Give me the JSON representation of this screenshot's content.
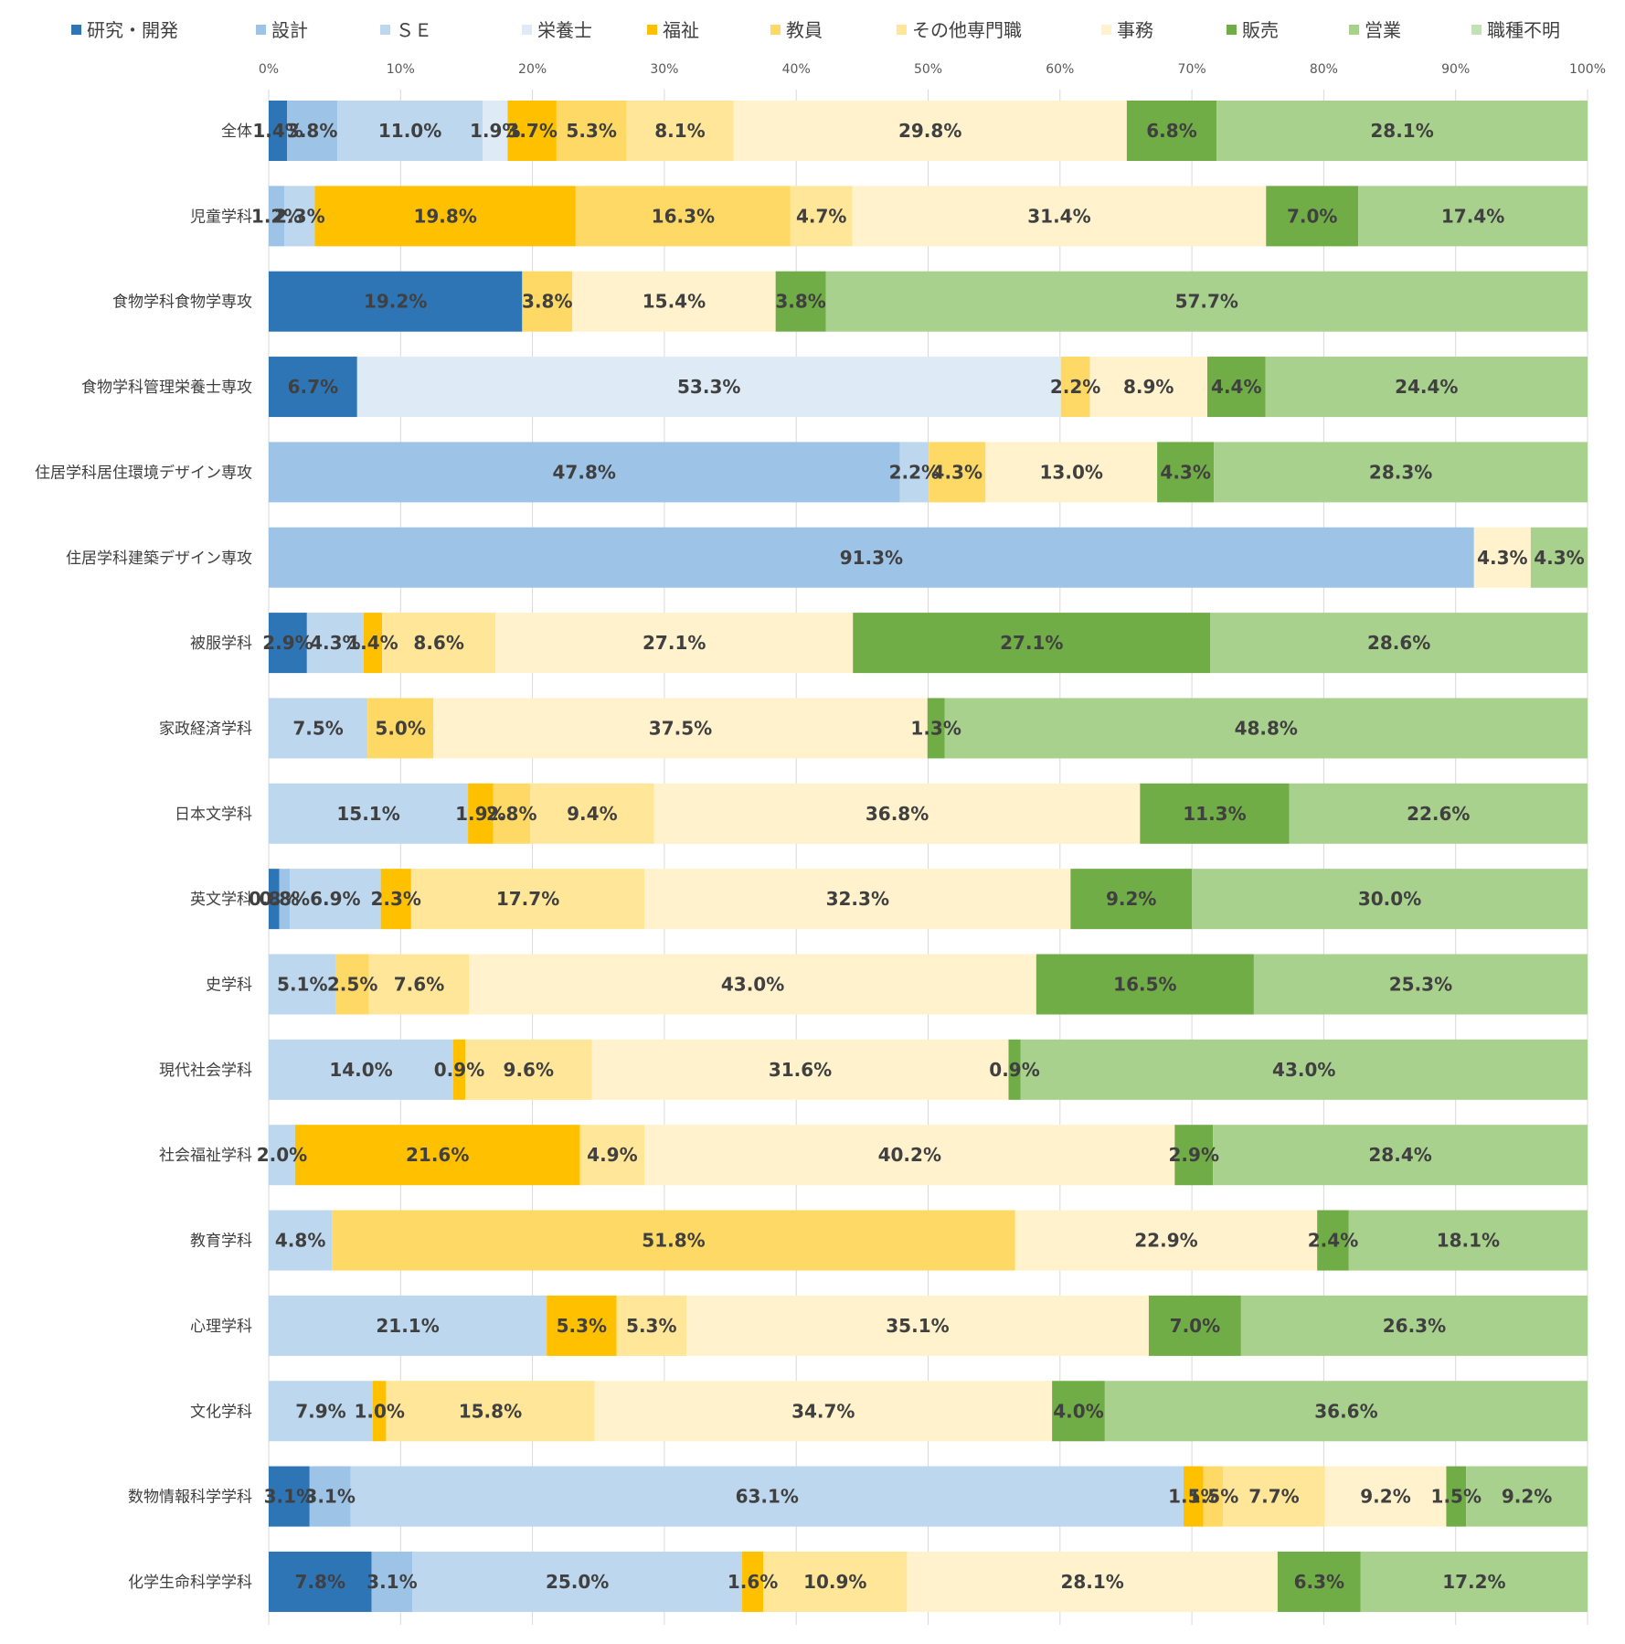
{
  "chart_data": {
    "type": "bar",
    "orientation": "horizontal",
    "stacked": "percent",
    "legend_position": "top",
    "grid": true,
    "xlim": [
      0,
      100
    ],
    "x_ticks": [
      "0%",
      "10%",
      "20%",
      "30%",
      "40%",
      "50%",
      "60%",
      "70%",
      "80%",
      "90%",
      "100%"
    ],
    "categories": [
      "全体",
      "児童学科",
      "食物学科食物学専攻",
      "食物学科管理栄養士専攻",
      "住居学科居住環境デザイン専攻",
      "住居学科建築デザイン専攻",
      "被服学科",
      "家政経済学科",
      "日本文学科",
      "英文学科",
      "史学科",
      "現代社会学科",
      "社会福祉学科",
      "教育学科",
      "心理学科",
      "文化学科",
      "数物情報科学学科",
      "化学生命科学学科"
    ],
    "series": [
      {
        "name": "研究・開発",
        "color": "#2e75b6",
        "values": [
          1.4,
          0,
          19.2,
          6.7,
          0,
          0,
          2.9,
          0,
          0,
          0.8,
          0,
          0,
          0,
          0,
          0,
          0,
          3.1,
          7.8
        ]
      },
      {
        "name": "設計",
        "color": "#9dc3e6",
        "values": [
          3.8,
          1.2,
          0,
          0,
          47.8,
          91.3,
          0,
          0,
          0,
          0.8,
          0,
          0,
          0,
          0,
          0,
          0,
          3.1,
          3.1
        ]
      },
      {
        "name": "ＳＥ",
        "color": "#bdd7ee",
        "values": [
          11.0,
          2.3,
          0,
          0,
          2.2,
          0,
          4.3,
          7.5,
          15.1,
          6.9,
          5.1,
          14.0,
          2.0,
          4.8,
          21.1,
          7.9,
          63.1,
          25.0
        ]
      },
      {
        "name": "栄養士",
        "color": "#deebf7",
        "values": [
          1.9,
          0,
          0,
          53.3,
          0,
          0,
          0,
          0,
          0,
          0,
          0,
          0,
          0,
          0,
          0,
          0,
          0,
          0
        ]
      },
      {
        "name": "福祉",
        "color": "#ffc000",
        "values": [
          3.7,
          19.8,
          0,
          0,
          0,
          0,
          1.4,
          0,
          1.9,
          2.3,
          0,
          0.9,
          21.6,
          0,
          5.3,
          1.0,
          1.5,
          1.6
        ]
      },
      {
        "name": "教員",
        "color": "#ffd966",
        "values": [
          5.3,
          16.3,
          3.8,
          2.2,
          4.3,
          0,
          0,
          5.0,
          2.8,
          0,
          2.5,
          0,
          0,
          51.8,
          0,
          0,
          1.5,
          0
        ]
      },
      {
        "name": "その他専門職",
        "color": "#ffe699",
        "values": [
          8.1,
          4.7,
          0,
          0,
          0,
          0,
          8.6,
          0,
          9.4,
          17.7,
          7.6,
          9.6,
          4.9,
          0,
          5.3,
          15.8,
          7.7,
          10.9
        ]
      },
      {
        "name": "事務",
        "color": "#fff2cc",
        "values": [
          29.8,
          31.4,
          15.4,
          8.9,
          13.0,
          4.3,
          27.1,
          37.5,
          36.8,
          32.3,
          43.0,
          31.6,
          40.2,
          22.9,
          35.1,
          34.7,
          9.2,
          28.1
        ]
      },
      {
        "name": "販売",
        "color": "#70ad47",
        "values": [
          6.8,
          7.0,
          3.8,
          4.4,
          4.3,
          0,
          27.1,
          1.3,
          11.3,
          9.2,
          16.5,
          0.9,
          2.9,
          2.4,
          7.0,
          4.0,
          1.5,
          6.3
        ]
      },
      {
        "name": "営業",
        "color": "#a9d18e",
        "values": [
          28.1,
          17.4,
          57.7,
          24.4,
          28.3,
          4.3,
          28.6,
          48.8,
          22.6,
          30.0,
          25.3,
          43.0,
          28.4,
          18.1,
          26.3,
          36.6,
          9.2,
          17.2
        ]
      },
      {
        "name": "職種不明",
        "color": "#c5e0b4",
        "values": [
          0,
          0,
          0,
          0,
          0,
          0,
          0,
          0,
          0,
          0,
          0,
          0,
          0,
          0,
          0,
          0,
          0,
          0
        ]
      }
    ],
    "data_labels": [
      [
        "1.4%",
        "3.8%",
        "11.0%",
        "1.9%",
        "3.7%",
        "5.3%",
        "8.1%",
        "29.8%",
        "6.8%",
        "28.1%"
      ],
      [
        "1.2%",
        "2.3%",
        "19.8%",
        "16.3%",
        "4.7%",
        "31.4%",
        "7.0%",
        "17.4%"
      ],
      [
        "19.2%",
        "3.8%",
        "15.4%",
        "3.8%",
        "57.7%"
      ],
      [
        "6.7%",
        "53.3%",
        "2.2%",
        "8.9%",
        "4.4%",
        "24.4%"
      ],
      [
        "47.8%",
        "2.2%",
        "4.3%",
        "13.0%",
        "4.3%",
        "28.3%"
      ],
      [
        "91.3%",
        "4.3%",
        "4.3%"
      ],
      [
        "2.9%",
        "4.3%",
        "1.4%",
        "8.6%",
        "27.1%",
        "27.1%",
        "28.6%"
      ],
      [
        "7.5%",
        "5.0%",
        "37.5%",
        "1.3%",
        "48.8%"
      ],
      [
        "15.1%",
        "1.9%",
        "2.8%",
        "9.4%",
        "36.8%",
        "11.3%",
        "22.6%"
      ],
      [
        "0.8%",
        "0.8%",
        "6.9%",
        "2.3%",
        "17.7%",
        "32.3%",
        "9.2%",
        "30.0%"
      ],
      [
        "5.1%",
        "2.5%",
        "7.6%",
        "43.0%",
        "16.5%",
        "25.3%"
      ],
      [
        "14.0%",
        "0.9%",
        "9.6%",
        "31.6%",
        "0.9%",
        "43.0%"
      ],
      [
        "2.0%",
        "21.6%",
        "4.9%",
        "40.2%",
        "2.9%",
        "28.4%"
      ],
      [
        "4.8%",
        "51.8%",
        "22.9%",
        "2.4%",
        "18.1%"
      ],
      [
        "21.1%",
        "5.3%",
        "5.3%",
        "35.1%",
        "7.0%",
        "26.3%"
      ],
      [
        "7.9%",
        "1.0%",
        "15.8%",
        "34.7%",
        "4.0%",
        "36.6%"
      ],
      [
        "3.1%",
        "3.1%",
        "63.1%",
        "1.5%",
        "1.5%",
        "7.7%",
        "9.2%",
        "1.5%",
        "9.2%"
      ],
      [
        "7.8%",
        "3.1%",
        "25.0%",
        "1.6%",
        "10.9%",
        "28.1%",
        "6.3%",
        "17.2%"
      ]
    ],
    "title": "",
    "xlabel": "",
    "ylabel": ""
  }
}
